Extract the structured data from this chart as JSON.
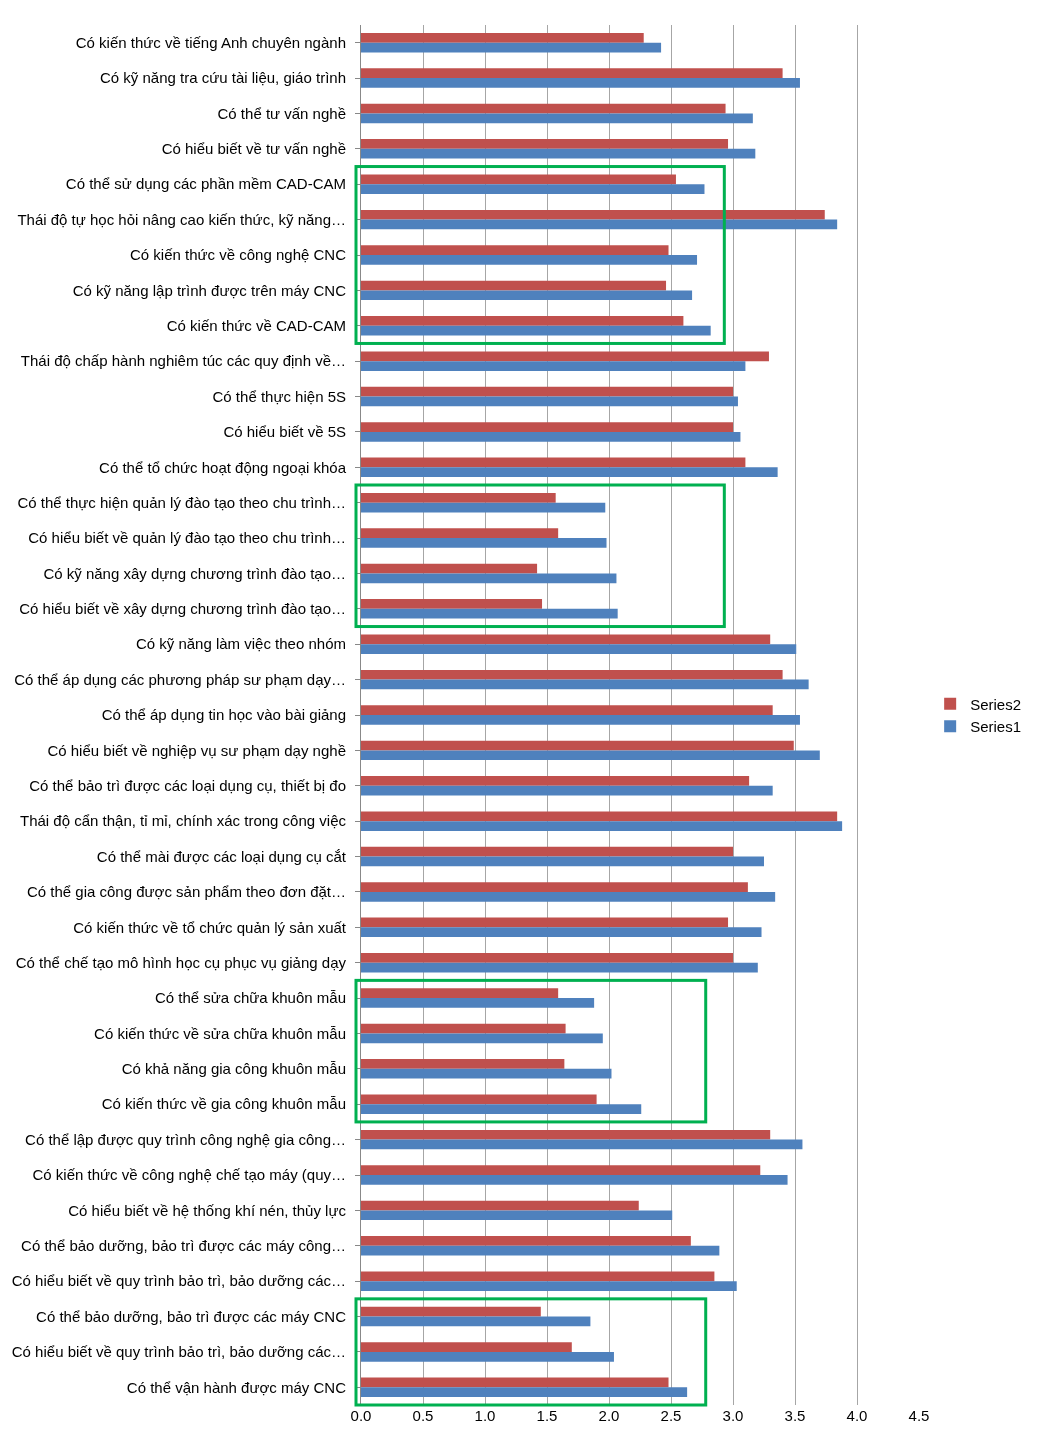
{
  "chart_data": {
    "type": "bar",
    "orientation": "horizontal",
    "categories": [
      "Có kiến thức về tiếng Anh chuyên ngành",
      "Có kỹ năng tra cứu tài liệu, giáo trình",
      "Có thể tư vấn nghề",
      "Có hiểu biết về tư vấn nghề",
      "Có thể sử dụng các phần mềm CAD-CAM",
      "Thái độ tự học hỏi nâng cao kiến thức, kỹ năng…",
      "Có kiến thức về công nghệ CNC",
      "Có kỹ năng lập trình được trên máy CNC",
      "Có kiến thức về CAD-CAM",
      "Thái độ chấp hành nghiêm túc các quy định về…",
      "Có thể thực hiện 5S",
      "Có hiểu biết về 5S",
      "Có thể tổ chức hoạt động ngoại khóa",
      "Có thể thực hiện quản lý đào tạo theo chu trình…",
      "Có hiểu biết về quản lý đào tạo theo chu trình…",
      "Có kỹ năng xây dựng chương trình đào tạo…",
      "Có hiểu biết về xây dựng chương trình đào tạo…",
      "Có kỹ năng làm việc theo nhóm",
      "Có thể áp dụng các phương pháp sư phạm dạy…",
      "Có thể áp dụng tin học vào bài giảng",
      "Có hiểu biết về nghiệp vụ sư phạm dạy nghề",
      "Có thể bảo trì được các loại dụng cụ, thiết bị đo",
      "Thái độ cẩn thận, tỉ mỉ, chính xác trong công việc",
      "Có thể mài được các loại dụng cụ cắt",
      "Có thể gia công được sản phẩm theo đơn đặt…",
      "Có kiến thức về tổ chức quản lý sản xuất",
      "Có thể chế tạo mô hình học cụ phục vụ giảng dạy",
      "Có thể sửa chữa khuôn mẫu",
      "Có kiến thức về sửa chữa khuôn mẫu",
      "Có khả năng gia công khuôn mẫu",
      "Có kiến thức về gia công khuôn mẫu",
      "Có thể lập được quy trình công nghệ gia công…",
      "Có kiến thức về công nghệ chế tạo máy (quy…",
      "Có hiểu biết về hệ thống khí nén, thủy lực",
      "Có thể bảo dưỡng, bảo trì được các máy công…",
      "Có hiểu biết về quy trình bảo trì, bảo dưỡng các…",
      "Có thể bảo dưỡng, bảo trì được các máy CNC",
      "Có hiểu biết về quy trình bảo trì, bảo dưỡng các…",
      "Có thể vận hành được máy CNC"
    ],
    "series": [
      {
        "name": "Series2",
        "color": "#c0504d",
        "values": [
          2.28,
          3.4,
          2.94,
          2.96,
          2.54,
          3.74,
          2.48,
          2.46,
          2.6,
          3.29,
          3.0,
          3.0,
          3.1,
          1.57,
          1.59,
          1.42,
          1.46,
          3.3,
          3.4,
          3.32,
          3.49,
          3.13,
          3.84,
          3.0,
          3.12,
          2.96,
          3.0,
          1.59,
          1.65,
          1.64,
          1.9,
          3.3,
          3.22,
          2.24,
          2.66,
          2.85,
          1.45,
          1.7,
          2.48
        ]
      },
      {
        "name": "Series1",
        "color": "#4f81bd",
        "values": [
          2.42,
          3.54,
          3.16,
          3.18,
          2.77,
          3.84,
          2.71,
          2.67,
          2.82,
          3.1,
          3.04,
          3.06,
          3.36,
          1.97,
          1.98,
          2.06,
          2.07,
          3.51,
          3.61,
          3.54,
          3.7,
          3.32,
          3.88,
          3.25,
          3.34,
          3.23,
          3.2,
          1.88,
          1.95,
          2.02,
          2.26,
          3.56,
          3.44,
          2.51,
          2.89,
          3.03,
          1.85,
          2.04,
          2.63
        ]
      }
    ],
    "xlim": [
      0,
      4.5
    ],
    "xticks": [
      {
        "value": 0,
        "label": "0.0"
      },
      {
        "value": 0.5,
        "label": "0.5"
      },
      {
        "value": 1,
        "label": "1.0"
      },
      {
        "value": 1.5,
        "label": "1.5"
      },
      {
        "value": 2,
        "label": "2.0"
      },
      {
        "value": 2.5,
        "label": "2.5"
      },
      {
        "value": 3,
        "label": "3.0"
      },
      {
        "value": 3.5,
        "label": "3.5"
      },
      {
        "value": 4,
        "label": "4.0"
      },
      {
        "value": 4.5,
        "label": "4.5"
      }
    ],
    "grid": "x",
    "legend": "right"
  }
}
